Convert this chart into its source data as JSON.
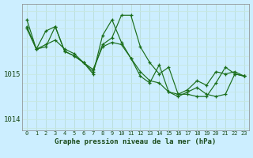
{
  "title": "Graphe pression niveau de la mer (hPa)",
  "background_color": "#cceeff",
  "grid_color_v": "#b8ddd8",
  "grid_color_h": "#c8e8e0",
  "line_color": "#1a6e1a",
  "xlim": [
    -0.5,
    23.5
  ],
  "ylim": [
    1013.75,
    1016.55
  ],
  "yticks": [
    1014,
    1015
  ],
  "xticks": [
    0,
    1,
    2,
    3,
    4,
    5,
    6,
    7,
    8,
    9,
    10,
    11,
    12,
    13,
    14,
    15,
    16,
    17,
    18,
    19,
    20,
    21,
    22,
    23
  ],
  "series": [
    [
      1016.05,
      1015.55,
      1015.65,
      1015.75,
      1015.55,
      1015.45,
      1015.25,
      1015.1,
      1015.6,
      1015.7,
      1015.65,
      1015.35,
      1015.05,
      1014.85,
      1014.8,
      1014.6,
      1014.55,
      1014.65,
      1014.85,
      1014.75,
      1015.05,
      1015.0,
      1015.05,
      1014.95
    ],
    [
      1016.0,
      1015.55,
      1015.95,
      1016.05,
      1015.5,
      1015.4,
      1015.25,
      1015.0,
      1015.85,
      1016.2,
      1015.7,
      1015.35,
      1014.95,
      1014.8,
      1015.2,
      1014.6,
      1014.5,
      1014.6,
      1014.7,
      1014.55,
      1014.5,
      1014.55,
      1015.0,
      1014.95
    ],
    [
      1016.2,
      1015.55,
      1015.6,
      1016.05,
      1015.5,
      1015.4,
      1015.25,
      1015.05,
      1015.65,
      1015.8,
      1016.3,
      1016.3,
      1015.6,
      1015.25,
      1015.0,
      1015.15,
      1014.55,
      1014.55,
      1014.5,
      1014.5,
      1014.8,
      1015.15,
      1015.0,
      1014.95
    ]
  ]
}
